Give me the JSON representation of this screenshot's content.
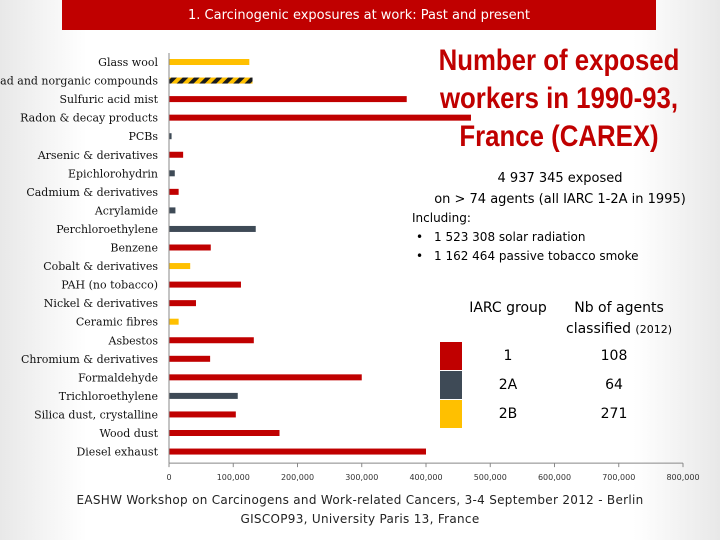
{
  "header": {
    "title": "1. Carcinogenic exposures at work: Past and present"
  },
  "big_title": "Number of exposed workers in 1990-93, France (CAREX)",
  "summary": {
    "line1": "4 937 345 exposed",
    "line2": "on > 74 agents (all IARC 1-2A in 1995)",
    "including_label": "Including:",
    "items": [
      "1 523 308 solar radiation",
      "1 162 464 passive tobacco smoke"
    ]
  },
  "legend": {
    "col1": "IARC group",
    "col2": "Nb of agents classified",
    "col2_year": "(2012)",
    "rows": [
      {
        "group": "1",
        "count": "108",
        "color": "#c00000"
      },
      {
        "group": "2A",
        "count": "64",
        "color": "#3e4a56"
      },
      {
        "group": "2B",
        "count": "271",
        "color": "#ffc000"
      }
    ]
  },
  "footer": {
    "line1": "EASHW Workshop on Carcinogens and Work-related Cancers, 3-4 September 2012 - Berlin",
    "line2": "GISCOP93, University Paris 13, France"
  },
  "chart_data": {
    "type": "bar",
    "orientation": "horizontal",
    "xlim": [
      0,
      800000
    ],
    "xticks": [
      "0",
      "100,000",
      "200,000",
      "300,000",
      "400,000",
      "500,000",
      "600,000",
      "700,000",
      "800,000"
    ],
    "colors": {
      "1": "#c00000",
      "2A": "#3e4a56",
      "2B": "#ffc000",
      "mixed": "hatched-yellow-black"
    },
    "categories": [
      "Glass wool",
      "Lead and norganic compounds",
      "Sulfuric acid mist",
      "Radon & decay products",
      "PCBs",
      "Arsenic & derivatives",
      "Epichlorohydrin",
      "Cadmium & derivatives",
      "Acrylamide",
      "Perchloroethylene",
      "Benzene",
      "Cobalt & derivatives",
      "PAH (no tobacco)",
      "Nickel & derivatives",
      "Ceramic fibres",
      "Asbestos",
      "Chromium & derivatives",
      "Formaldehyde",
      "Trichloroethylene",
      "Silica dust, crystalline",
      "Wood dust",
      "Diesel exhaust"
    ],
    "values": [
      125000,
      130000,
      370000,
      470000,
      4000,
      22000,
      9000,
      15000,
      10000,
      135000,
      65000,
      33000,
      112000,
      42000,
      15000,
      132000,
      64000,
      300000,
      107000,
      104000,
      172000,
      400000
    ],
    "groups": [
      "2B",
      "mixed",
      "1",
      "1",
      "2A",
      "1",
      "2A",
      "1",
      "2A",
      "2A",
      "1",
      "2B",
      "1",
      "1",
      "2B",
      "1",
      "1",
      "1",
      "2A",
      "1",
      "1",
      "1"
    ]
  }
}
